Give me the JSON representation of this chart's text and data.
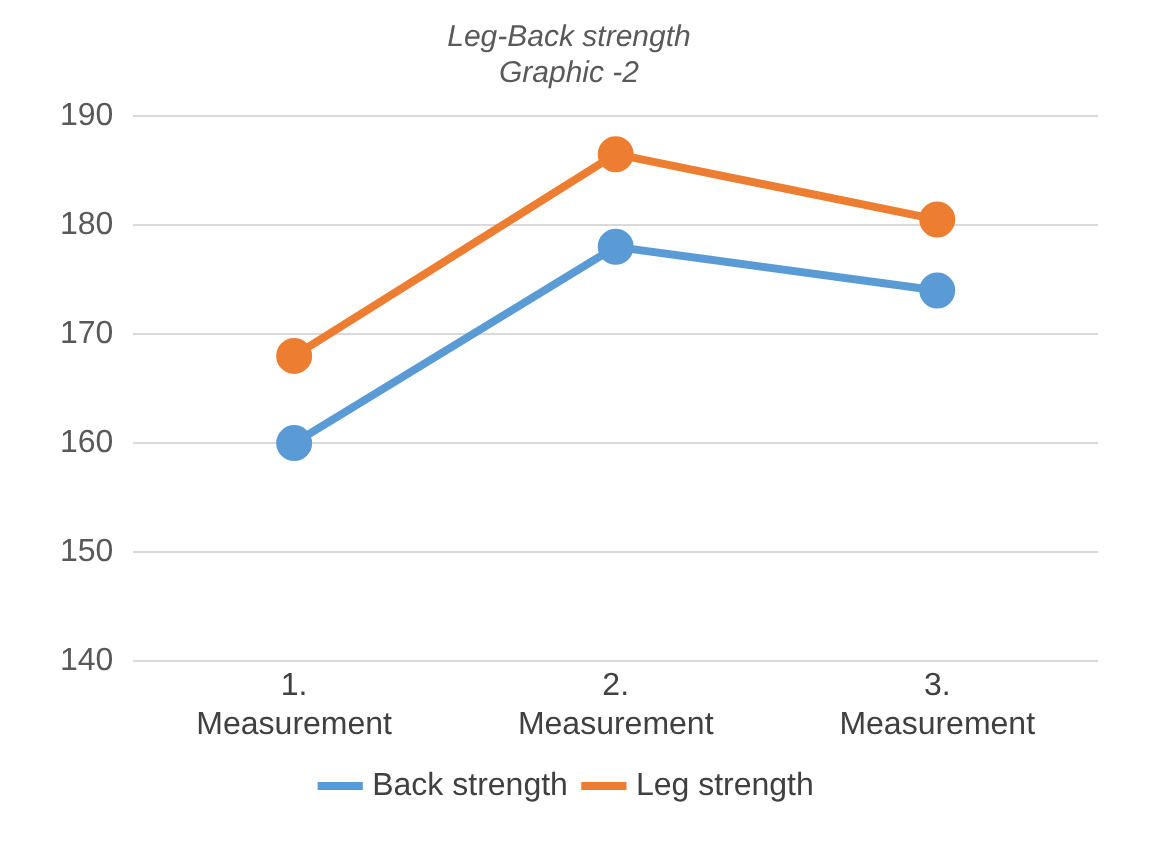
{
  "chart_data": {
    "type": "line",
    "title": "Leg-Back strength\nGraphic -2",
    "categories": [
      "1.\nMeasurement",
      "2.\nMeasurement",
      "3.\nMeasurement"
    ],
    "series": [
      {
        "name": "Back strength",
        "color": "#5b9bd5",
        "values": [
          160,
          178,
          174
        ]
      },
      {
        "name": "Leg strength",
        "color": "#ed7d31",
        "values": [
          168,
          186.5,
          180.5
        ]
      }
    ],
    "ylim": [
      140,
      190
    ],
    "yticks": [
      140,
      150,
      160,
      170,
      180,
      190
    ],
    "grid": "y",
    "legend": "bottom",
    "marker": "circle",
    "line_style": "solid"
  }
}
